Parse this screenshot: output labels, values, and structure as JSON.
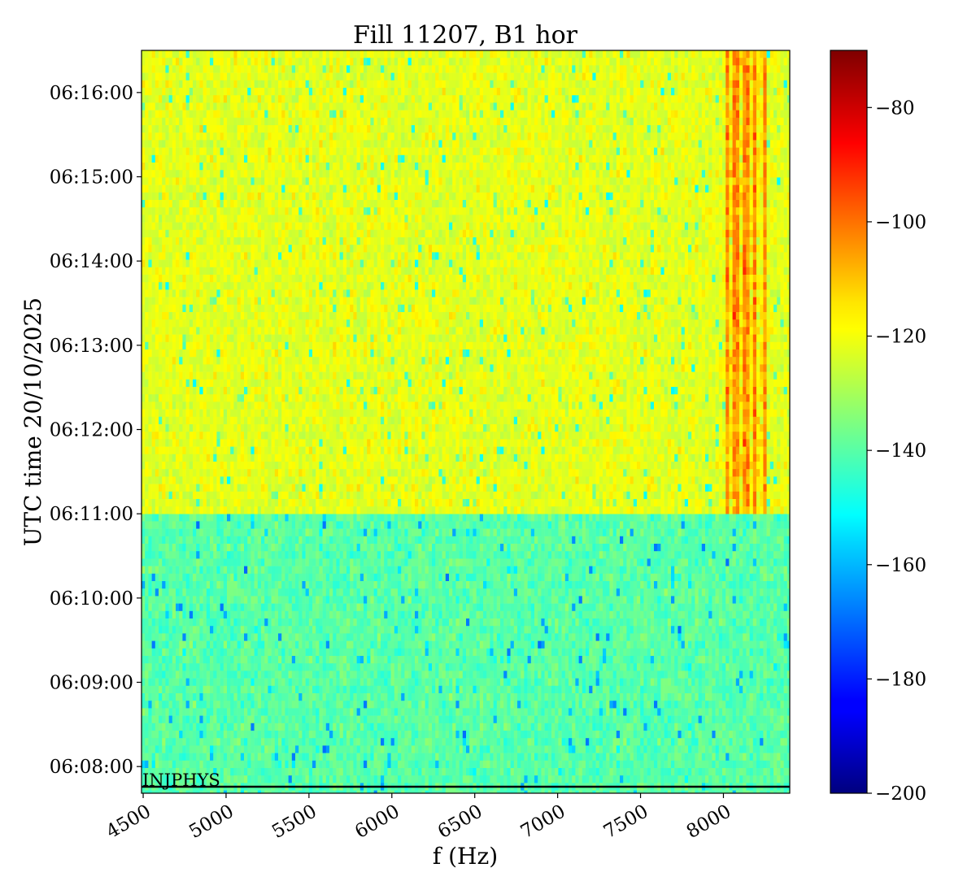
{
  "chart_data": {
    "type": "heatmap",
    "title": "Fill 11207, B1 hor",
    "xlabel": "f (Hz)",
    "ylabel": "UTC time 20/10/2025",
    "xlim": [
      4490,
      8400
    ],
    "xticks": [
      4500,
      5000,
      5500,
      6000,
      6500,
      7000,
      7500,
      8000
    ],
    "x_tick_labels": [
      "4500",
      "5000",
      "5500",
      "6000",
      "6500",
      "7000",
      "7500",
      "8000"
    ],
    "ylim": [
      "06:07:41",
      "06:16:30"
    ],
    "y_tick_labels": [
      "06:08:00",
      "06:09:00",
      "06:10:00",
      "06:11:00",
      "06:12:00",
      "06:13:00",
      "06:14:00",
      "06:15:00",
      "06:16:00"
    ],
    "colorbar": {
      "colormap": "jet",
      "range": [
        -200,
        -70
      ],
      "ticks": [
        -80,
        -100,
        -120,
        -140,
        -160,
        -180,
        -200
      ],
      "tick_labels": [
        "−80",
        "−100",
        "−120",
        "−140",
        "−160",
        "−180",
        "−200"
      ]
    },
    "regions": [
      {
        "time_start": "06:07:41",
        "time_end": "06:11:00",
        "f_start": 4490,
        "f_end": 8400,
        "typical_value": -140
      },
      {
        "time_start": "06:11:00",
        "time_end": "06:16:30",
        "f_start": 4490,
        "f_end": 8400,
        "typical_value": -122
      },
      {
        "time_start": "06:11:00",
        "time_end": "06:16:30",
        "f_start": 8000,
        "f_end": 8250,
        "typical_value": -104
      }
    ],
    "annotations": [
      {
        "text": "INJPHYS",
        "time": "06:07:47",
        "f": 4490
      }
    ]
  }
}
